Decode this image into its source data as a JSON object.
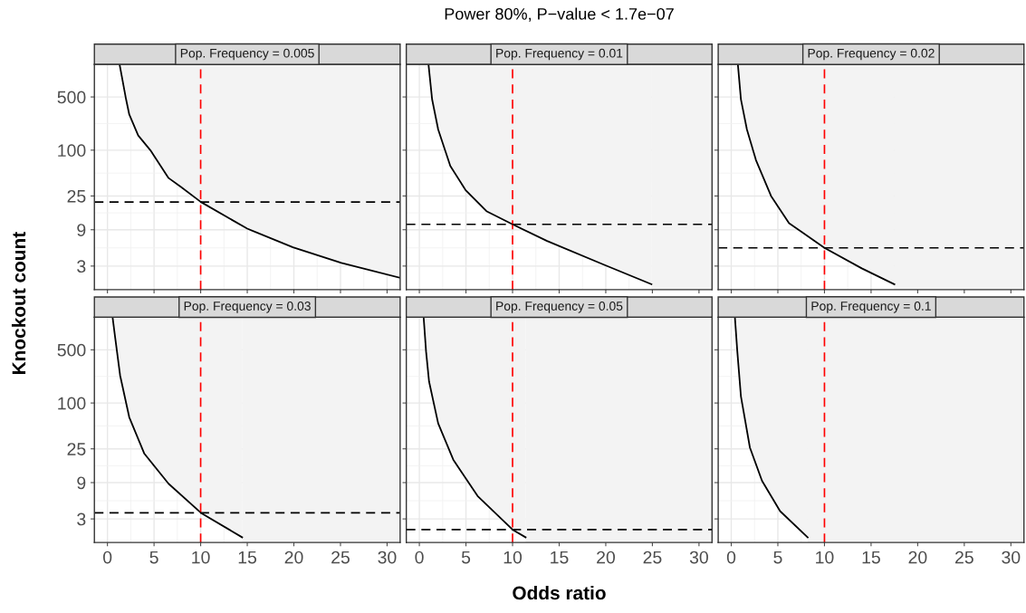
{
  "chart_data": [
    {
      "type": "line",
      "title": "Pop. Frequency = 0.005",
      "ylabel": "Knockout count",
      "annotations": [
        "Power 80%, P−value < 1.7e−07"
      ],
      "log": true,
      "grid": true,
      "tick_labels": "y",
      "xlim": [
        -1.4,
        31.4
      ],
      "ylim": [
        1.47,
        1340
      ],
      "xticks": [
        0,
        5,
        10,
        15,
        20,
        25,
        30
      ],
      "yticks": [
        3,
        9,
        25,
        100,
        500
      ],
      "series": [
        {
          "color": "#000000",
          "x": [
            1.3,
            2.0,
            2.34,
            3.3,
            4.6,
            6.56,
            7.86,
            10.03,
            15,
            19.9,
            25.1,
            31.4
          ],
          "values": [
            1340,
            464,
            294,
            156,
            100,
            43,
            33,
            20.8,
            9.3,
            5.3,
            3.3,
            2.1
          ],
          "lower": [
            1340,
            464,
            294,
            156,
            100,
            43,
            33,
            20.8,
            9.3,
            5.3,
            3.3,
            2.1
          ],
          "upper": [
            1340,
            1340,
            1340,
            1340,
            1340,
            1340,
            1340,
            1340,
            1340,
            1340,
            1340,
            1340
          ]
        }
      ],
      "ref_lines": [
        {
          "axis": "x",
          "value": 10,
          "color": "#ff0000",
          "line_style": "dashed"
        },
        {
          "axis": "y",
          "value": 20.8,
          "color": "#000000",
          "line_style": "dashed"
        }
      ]
    },
    {
      "type": "line",
      "title": "Pop. Frequency = 0.01",
      "log": true,
      "grid": true,
      "tick_labels": false,
      "xlim": [
        -1.4,
        31.4
      ],
      "ylim": [
        1.47,
        1340
      ],
      "xticks": [
        0,
        5,
        10,
        15,
        20,
        25,
        30
      ],
      "yticks": [
        3,
        9,
        25,
        100,
        500
      ],
      "series": [
        {
          "color": "#000000",
          "x": [
            0.98,
            1.37,
            2.02,
            3.32,
            4.95,
            7.2,
            10,
            13.7,
            19.6,
            24.9
          ],
          "values": [
            1340,
            464,
            187,
            62,
            30,
            15.8,
            10.6,
            6.4,
            3.2,
            1.73
          ],
          "lower": [
            1340,
            464,
            187,
            62,
            30,
            15.8,
            10.6,
            6.4,
            3.2,
            1.73
          ],
          "upper": [
            1340,
            1340,
            1340,
            1340,
            1340,
            1340,
            1340,
            1340,
            1340,
            1340
          ]
        }
      ],
      "bands": [
        {
          "axis": "x",
          "from": 24.9,
          "to": 31.4,
          "color": "#f3f3f3"
        }
      ],
      "ref_lines": [
        {
          "axis": "x",
          "value": 10,
          "color": "#ff0000",
          "line_style": "dashed"
        },
        {
          "axis": "y",
          "value": 10.6,
          "color": "#000000",
          "line_style": "dashed"
        }
      ]
    },
    {
      "type": "line",
      "title": "Pop. Frequency = 0.02",
      "log": true,
      "grid": true,
      "tick_labels": false,
      "xlim": [
        -1.4,
        31.4
      ],
      "ylim": [
        1.47,
        1340
      ],
      "xticks": [
        0,
        5,
        10,
        15,
        20,
        25,
        30
      ],
      "yticks": [
        3,
        9,
        25,
        100,
        500
      ],
      "series": [
        {
          "color": "#000000",
          "x": [
            0.71,
            1.04,
            1.68,
            2.65,
            4.27,
            6.2,
            10,
            14,
            17.5
          ],
          "values": [
            1340,
            464,
            187,
            74,
            25,
            11,
            5.2,
            2.8,
            1.73
          ],
          "lower": [
            1340,
            464,
            187,
            74,
            25,
            11,
            5.2,
            2.8,
            1.73
          ],
          "upper": [
            1340,
            1340,
            1340,
            1340,
            1340,
            1340,
            1340,
            1340,
            1340
          ]
        }
      ],
      "bands": [
        {
          "axis": "x",
          "from": 17.5,
          "to": 31.4,
          "color": "#f3f3f3"
        }
      ],
      "ref_lines": [
        {
          "axis": "x",
          "value": 10,
          "color": "#ff0000",
          "line_style": "dashed"
        },
        {
          "axis": "y",
          "value": 5.2,
          "color": "#000000",
          "line_style": "dashed"
        }
      ]
    },
    {
      "type": "line",
      "title": "Pop. Frequency = 0.03",
      "log": true,
      "grid": true,
      "xlim": [
        -1.4,
        31.4
      ],
      "ylim": [
        1.47,
        1340
      ],
      "xticks": [
        0,
        5,
        10,
        15,
        20,
        25,
        30
      ],
      "yticks": [
        3,
        9,
        25,
        100,
        500
      ],
      "series": [
        {
          "color": "#000000",
          "x": [
            0.55,
            0.81,
            1.36,
            2.34,
            3.96,
            6.56,
            10.03,
            14.45
          ],
          "values": [
            1340,
            754,
            230,
            65,
            21.6,
            8.7,
            3.6,
            1.72
          ],
          "lower": [
            1340,
            754,
            230,
            65,
            21.6,
            8.7,
            3.6,
            1.72
          ],
          "upper": [
            1340,
            1340,
            1340,
            1340,
            1340,
            1340,
            1340,
            1340
          ]
        }
      ],
      "bands": [
        {
          "axis": "x",
          "from": 14.45,
          "to": 31.4,
          "color": "#f3f3f3"
        }
      ],
      "ref_lines": [
        {
          "axis": "x",
          "value": 10,
          "color": "#ff0000",
          "line_style": "dashed"
        },
        {
          "axis": "y",
          "value": 3.6,
          "color": "#000000",
          "line_style": "dashed"
        }
      ]
    },
    {
      "type": "line",
      "title": "Pop. Frequency = 0.05",
      "xlabel": "Odds ratio",
      "log": true,
      "grid": true,
      "tick_labels": "x",
      "xlim": [
        -1.4,
        31.4
      ],
      "ylim": [
        1.47,
        1340
      ],
      "xticks": [
        0,
        5,
        10,
        15,
        20,
        25,
        30
      ],
      "yticks": [
        3,
        9,
        25,
        100,
        500
      ],
      "series": [
        {
          "color": "#000000",
          "x": [
            0.46,
            0.72,
            1.04,
            2.02,
            3.64,
            6.25,
            10,
            11.4
          ],
          "values": [
            1340,
            476,
            192,
            54,
            18,
            6.0,
            2.17,
            1.72
          ],
          "lower": [
            1340,
            476,
            192,
            54,
            18,
            6.0,
            2.17,
            1.72
          ],
          "upper": [
            1340,
            1340,
            1340,
            1340,
            1340,
            1340,
            1340,
            1340
          ]
        }
      ],
      "bands": [
        {
          "axis": "x",
          "from": 11.4,
          "to": 31.4,
          "color": "#f3f3f3"
        }
      ],
      "ref_lines": [
        {
          "axis": "x",
          "value": 10,
          "color": "#ff0000",
          "line_style": "dashed"
        },
        {
          "axis": "y",
          "value": 2.17,
          "color": "#000000",
          "line_style": "dashed"
        }
      ]
    },
    {
      "type": "line",
      "title": "Pop. Frequency = 0.1",
      "log": true,
      "grid": true,
      "tick_labels": "x",
      "xlim": [
        -1.4,
        31.4
      ],
      "ylim": [
        1.47,
        1340
      ],
      "xticks": [
        0,
        5,
        10,
        15,
        20,
        25,
        30
      ],
      "yticks": [
        3,
        9,
        25,
        100,
        500
      ],
      "series": [
        {
          "color": "#000000",
          "x": [
            0.39,
            0.65,
            1.04,
            2.0,
            3.3,
            5.24,
            8.2
          ],
          "values": [
            1340,
            476,
            122,
            26,
            9.5,
            3.8,
            1.72
          ],
          "lower": [
            1340,
            476,
            122,
            26,
            9.5,
            3.8,
            1.72
          ],
          "upper": [
            1340,
            1340,
            1340,
            1340,
            1340,
            1340,
            1340
          ]
        }
      ],
      "bands": [
        {
          "axis": "x",
          "from": 8.2,
          "to": 31.4,
          "color": "#f3f3f3"
        }
      ],
      "ref_lines": [
        {
          "axis": "x",
          "value": 10,
          "color": "#ff0000",
          "line_style": "dashed"
        }
      ]
    }
  ]
}
